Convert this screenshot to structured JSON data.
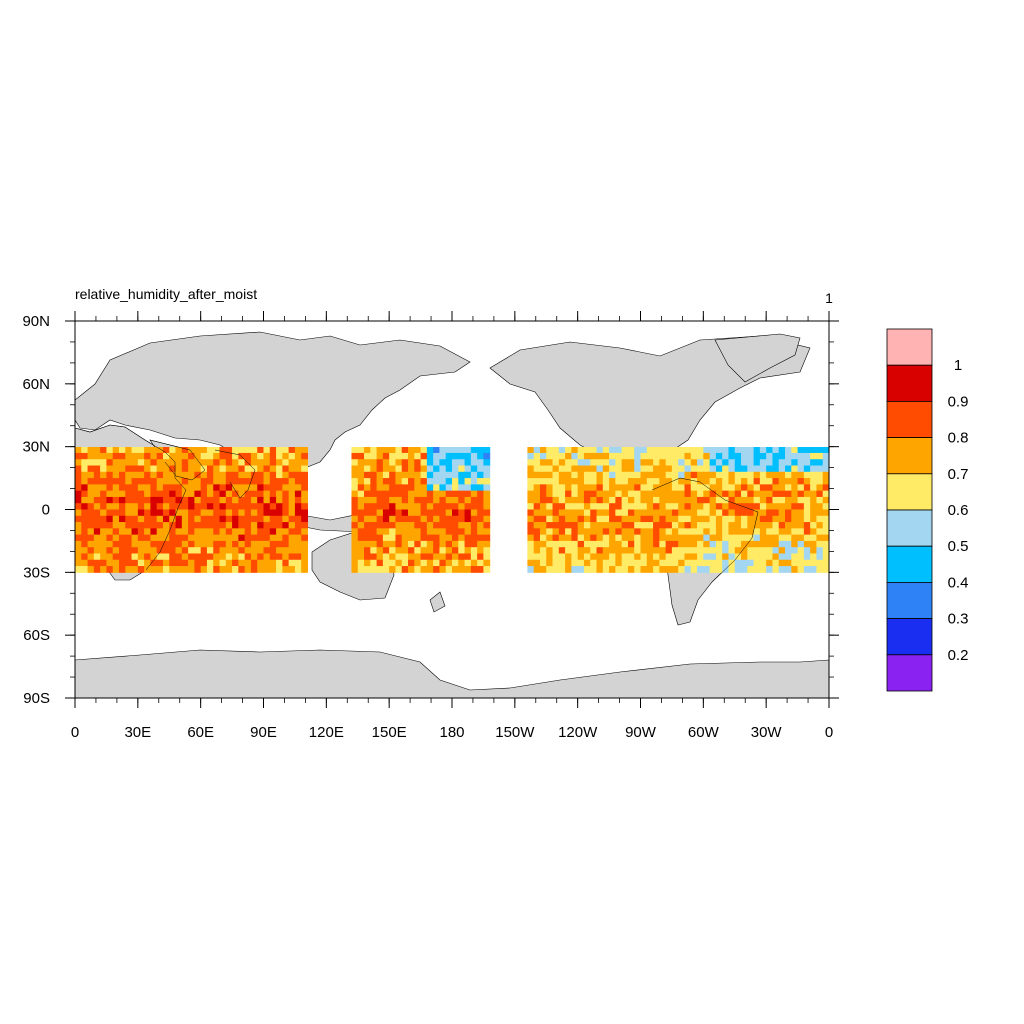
{
  "map": {
    "title_left": "relative_humidity_after_moist",
    "title_right": "1",
    "lat_ticks": [
      "90N",
      "60N",
      "30N",
      "0",
      "30S",
      "60S",
      "90S"
    ],
    "lon_ticks": [
      "0",
      "30E",
      "60E",
      "90E",
      "120E",
      "150E",
      "180",
      "150W",
      "120W",
      "90W",
      "60W",
      "30W",
      "0"
    ],
    "land_color": "#d3d3d3",
    "projection": "cylindrical equidistant, 0 to 360 longitude",
    "data_latitude_band": "30S to 30N"
  },
  "colorbar": {
    "labels": [
      "1",
      "0.9",
      "0.8",
      "0.7",
      "0.6",
      "0.5",
      "0.4",
      "0.3",
      "0.2"
    ],
    "colors_top_to_bottom": [
      "#ffb3b3",
      "#d90000",
      "#ff4c00",
      "#ffa500",
      "#ffeb66",
      "#a3d6f0",
      "#00bfff",
      "#2e82f5",
      "#1a2ef2",
      "#8a22f2"
    ]
  }
}
